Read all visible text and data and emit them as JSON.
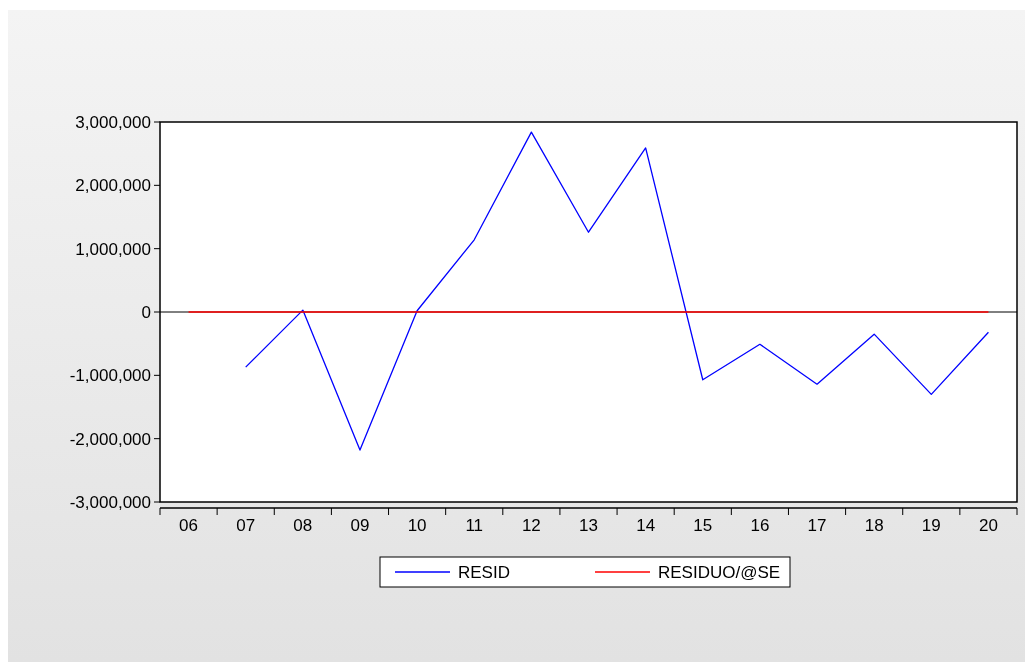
{
  "chart_data": {
    "type": "line",
    "categories": [
      "06",
      "07",
      "08",
      "09",
      "10",
      "11",
      "12",
      "13",
      "14",
      "15",
      "16",
      "17",
      "18",
      "19",
      "20"
    ],
    "series": [
      {
        "name": "RESID",
        "color": "#0000ff",
        "values": [
          null,
          -870000,
          30000,
          -2180000,
          20000,
          1140000,
          2840000,
          1260000,
          2590000,
          -1070000,
          -510000,
          -1140000,
          -350000,
          -1300000,
          -320000
        ]
      },
      {
        "name": "RESIDUO/@SE",
        "color": "#ff0000",
        "values": [
          0,
          0,
          0,
          0,
          0,
          0,
          0,
          0,
          0,
          0,
          0,
          0,
          0,
          0,
          0
        ]
      }
    ],
    "ylim": [
      -3000000,
      3000000
    ],
    "yticks": [
      {
        "value": -3000000,
        "label": "-3,000,000"
      },
      {
        "value": -2000000,
        "label": "-2,000,000"
      },
      {
        "value": -1000000,
        "label": "-1,000,000"
      },
      {
        "value": 0,
        "label": "0"
      },
      {
        "value": 1000000,
        "label": "1,000,000"
      },
      {
        "value": 2000000,
        "label": "2,000,000"
      },
      {
        "value": 3000000,
        "label": "3,000,000"
      }
    ],
    "ref_lines": [
      {
        "axis": "y",
        "value": 0,
        "color": "#000000"
      }
    ],
    "legend": "bottom",
    "marker": "none",
    "line_style": "solid"
  }
}
